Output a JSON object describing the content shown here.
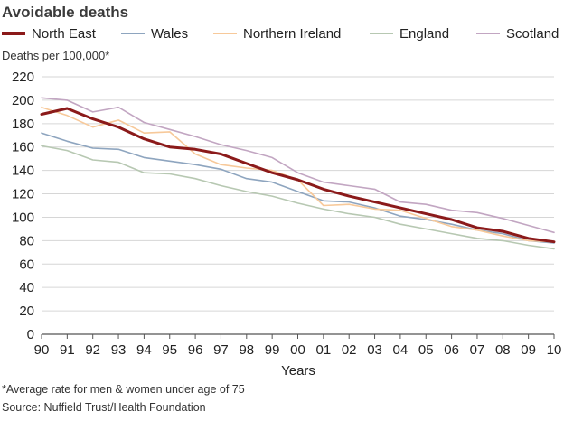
{
  "chart_data": {
    "type": "line",
    "title": "Avoidable deaths",
    "ylabel": "Deaths per 100,000*",
    "xlabel": "Years",
    "ylim": [
      0,
      220
    ],
    "yticks": [
      0,
      20,
      40,
      60,
      80,
      100,
      120,
      140,
      160,
      180,
      200,
      220
    ],
    "grid": "horizontal",
    "legend_placement": "top",
    "categories": [
      "90",
      "91",
      "92",
      "93",
      "94",
      "95",
      "96",
      "97",
      "98",
      "99",
      "00",
      "01",
      "02",
      "03",
      "04",
      "05",
      "06",
      "07",
      "08",
      "09",
      "10"
    ],
    "series": [
      {
        "name": "North East",
        "color": "#8b1a1a",
        "width": 3,
        "values": [
          188,
          193,
          184,
          177,
          167,
          160,
          158,
          154,
          146,
          138,
          132,
          124,
          118,
          113,
          108,
          103,
          98,
          91,
          88,
          82,
          79
        ]
      },
      {
        "name": "Wales",
        "color": "#8ea5bf",
        "width": 1.6,
        "values": [
          172,
          165,
          159,
          158,
          151,
          148,
          145,
          141,
          133,
          130,
          122,
          114,
          113,
          108,
          101,
          98,
          94,
          89,
          86,
          80,
          78
        ]
      },
      {
        "name": "Northern Ireland",
        "color": "#f7c99a",
        "width": 1.6,
        "values": [
          194,
          187,
          177,
          183,
          172,
          173,
          154,
          145,
          142,
          140,
          132,
          110,
          111,
          107,
          106,
          99,
          92,
          89,
          84,
          80,
          79
        ]
      },
      {
        "name": "England",
        "color": "#b7c8b2",
        "width": 1.6,
        "values": [
          161,
          157,
          149,
          147,
          138,
          137,
          133,
          127,
          122,
          118,
          112,
          107,
          103,
          100,
          94,
          90,
          86,
          82,
          80,
          76,
          73
        ]
      },
      {
        "name": "Scotland",
        "color": "#c2a6c2",
        "width": 1.6,
        "values": [
          202,
          200,
          190,
          194,
          181,
          175,
          169,
          162,
          157,
          151,
          138,
          130,
          127,
          124,
          113,
          111,
          106,
          104,
          99,
          93,
          87
        ]
      }
    ],
    "footnote": "*Average rate for men & women under age of 75",
    "source": "Source: Nuffield Trust/Health Foundation"
  }
}
